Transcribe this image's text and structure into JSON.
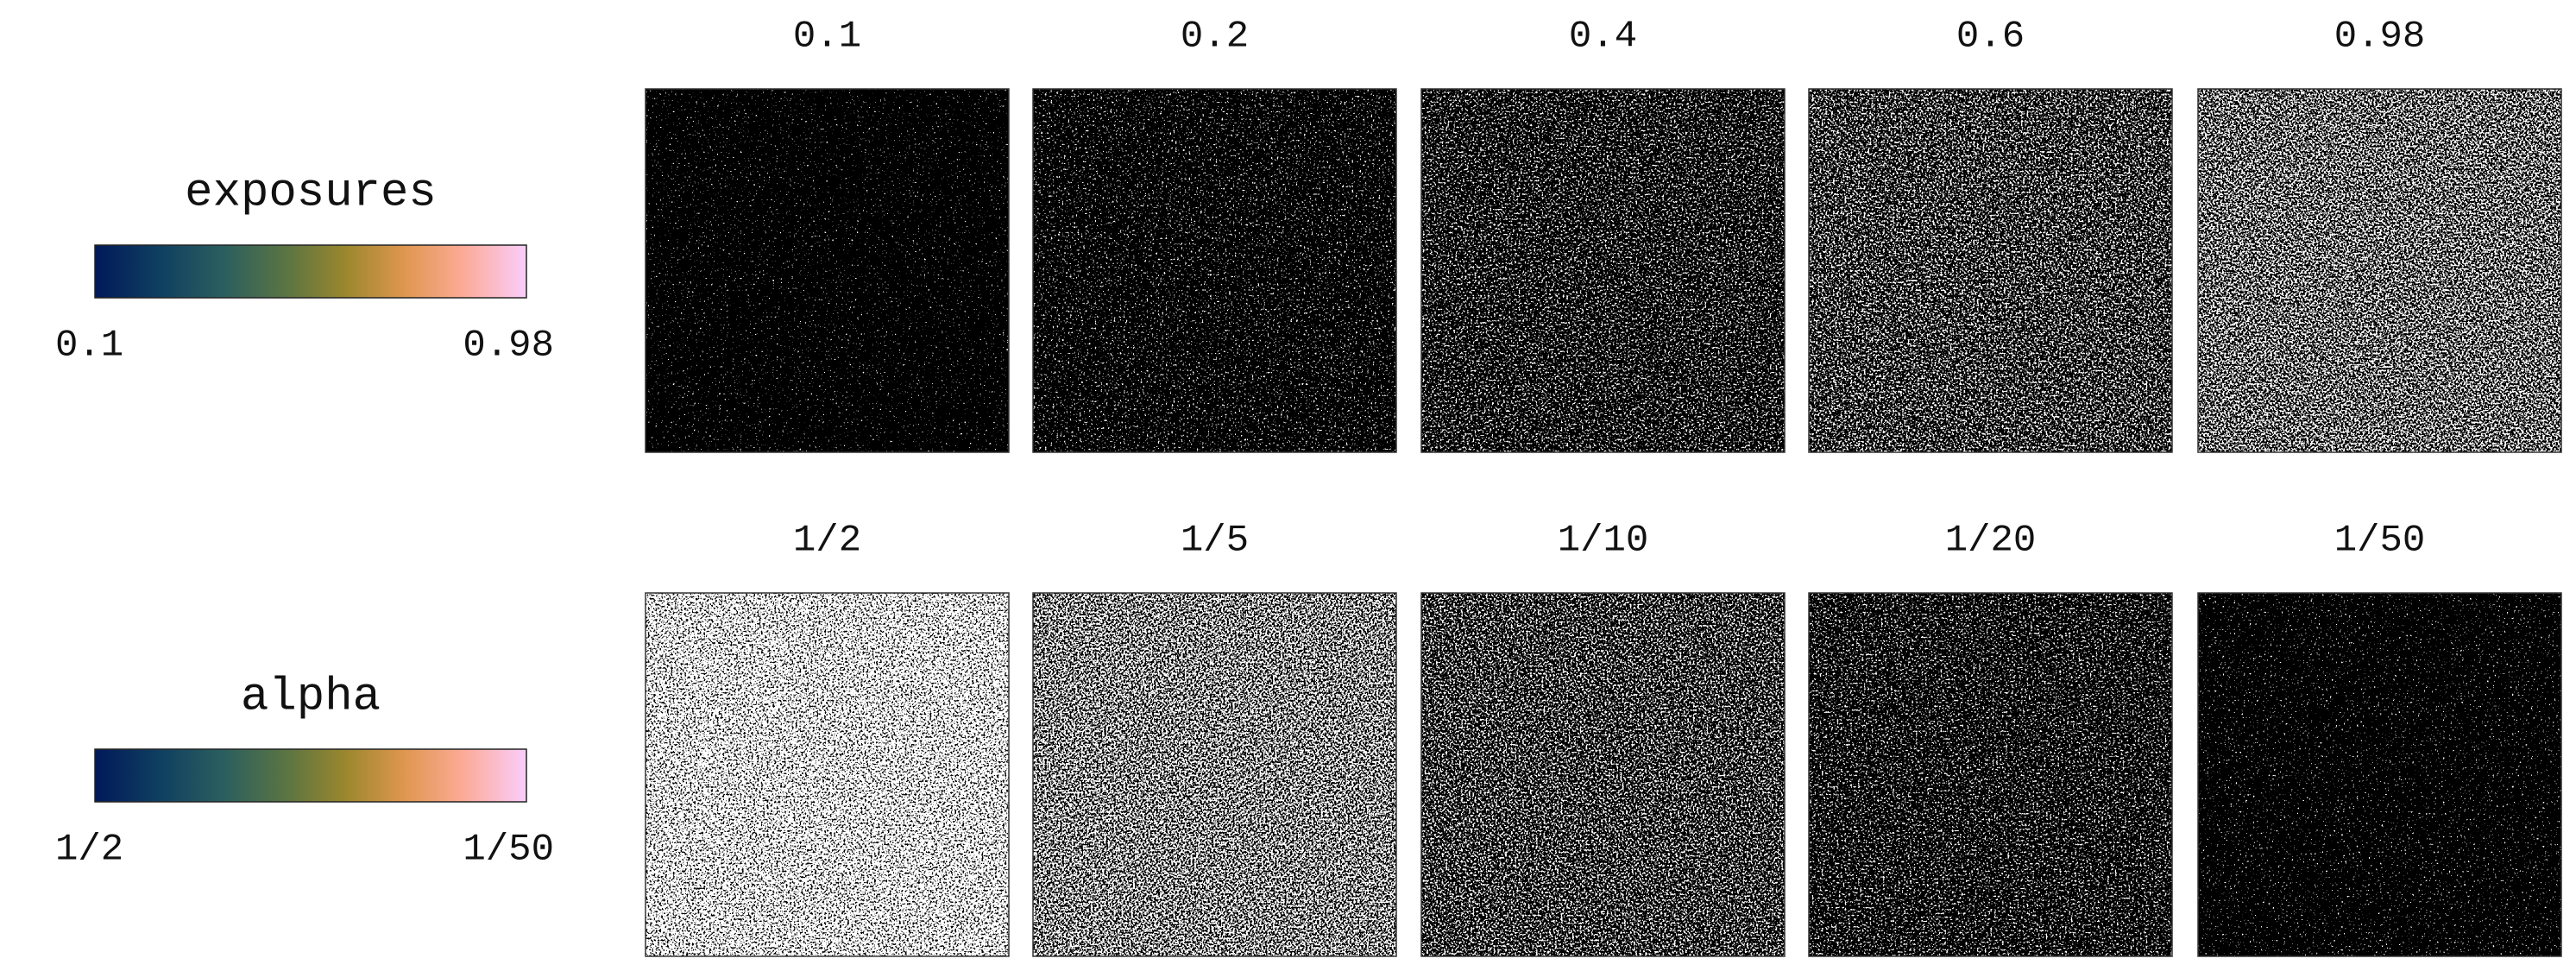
{
  "rows": [
    {
      "label": "exposures",
      "min": "0.1",
      "max": "0.98",
      "panels": [
        "0.1",
        "0.2",
        "0.4",
        "0.6",
        "0.98"
      ]
    },
    {
      "label": "alpha",
      "min": "1/2",
      "max": "1/50",
      "panels": [
        "1/2",
        "1/5",
        "1/10",
        "1/20",
        "1/50"
      ]
    }
  ]
}
